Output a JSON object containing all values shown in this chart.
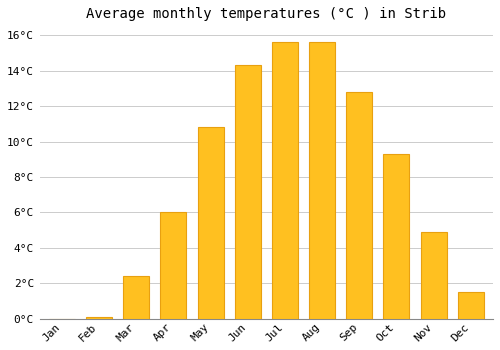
{
  "months": [
    "Jan",
    "Feb",
    "Mar",
    "Apr",
    "May",
    "Jun",
    "Jul",
    "Aug",
    "Sep",
    "Oct",
    "Nov",
    "Dec"
  ],
  "values": [
    0.0,
    0.1,
    2.4,
    6.0,
    10.8,
    14.3,
    15.6,
    15.6,
    12.8,
    9.3,
    4.9,
    1.5
  ],
  "bar_color": "#FFC020",
  "bar_edge_color": "#E8A010",
  "title": "Average monthly temperatures (°C ) in Strib",
  "ylim": [
    0,
    16.5
  ],
  "yticks": [
    0,
    2,
    4,
    6,
    8,
    10,
    12,
    14,
    16
  ],
  "ytick_labels": [
    "0°C",
    "2°C",
    "4°C",
    "6°C",
    "8°C",
    "10°C",
    "12°C",
    "14°C",
    "16°C"
  ],
  "background_color": "#FFFFFF",
  "plot_bg_color": "#FFFFFF",
  "grid_color": "#CCCCCC",
  "title_fontsize": 10,
  "tick_fontsize": 8,
  "font_family": "monospace",
  "bar_width": 0.7
}
